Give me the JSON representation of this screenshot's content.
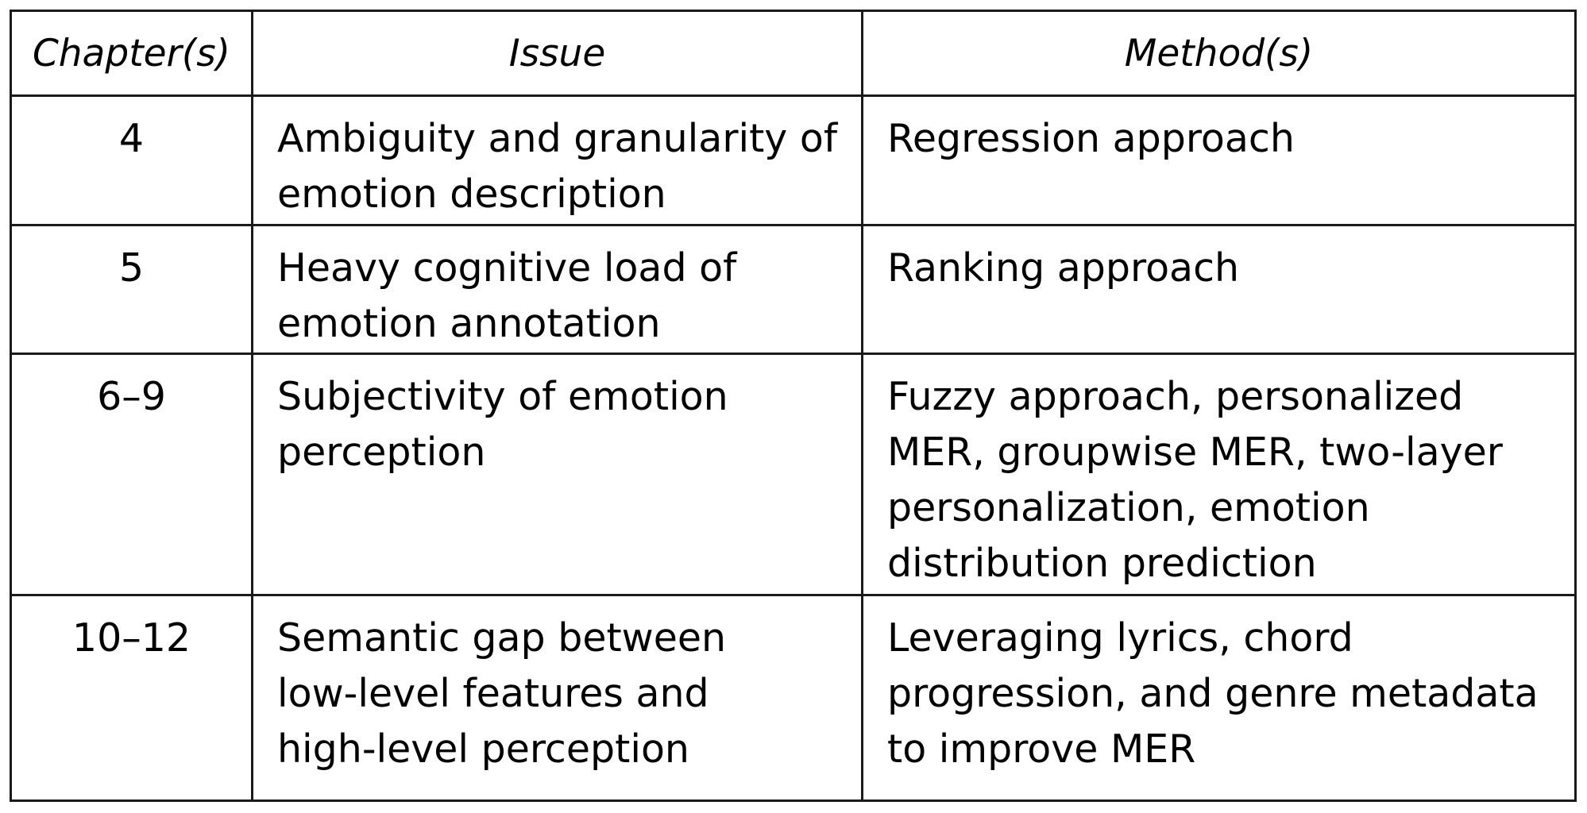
{
  "table": {
    "headers": [
      "Chapter(s)",
      "Issue",
      "Method(s)"
    ],
    "rows": [
      {
        "chapter": "4",
        "issue": [
          "Ambiguity and granularity of",
          "emotion description"
        ],
        "method": [
          "Regression approach"
        ]
      },
      {
        "chapter": "5",
        "issue": [
          "Heavy cognitive load of",
          "emotion annotation"
        ],
        "method": [
          "Ranking approach"
        ]
      },
      {
        "chapter": "6–9",
        "issue": [
          "Subjectivity of emotion",
          "perception"
        ],
        "method": [
          "Fuzzy approach, personalized",
          "MER, groupwise MER, two-layer",
          "personalization, emotion",
          "distribution prediction"
        ]
      },
      {
        "chapter": "10–12",
        "issue": [
          "Semantic gap between",
          "low-level features and",
          "high-level perception"
        ],
        "method": [
          "Leveraging lyrics, chord",
          "progression, and genre metadata",
          "to improve MER"
        ]
      }
    ]
  }
}
